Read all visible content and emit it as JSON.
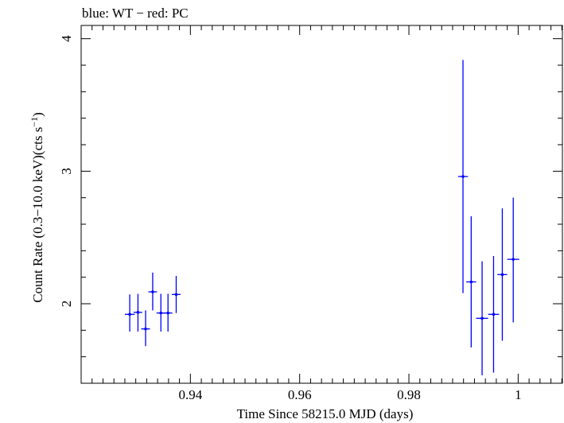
{
  "chart_data": {
    "type": "scatter",
    "title": "blue: WT − red: PC",
    "xlabel": "Time Since 58215.0 MJD (days)",
    "ylabel_main": "Count Rate (0.3−10.0 keV)(cts s",
    "ylabel_sup": "−1",
    "ylabel_close": ")",
    "xlim": [
      0.92,
      1.0081
    ],
    "ylim": [
      1.4,
      4.1
    ],
    "x_major_ticks": [
      0.94,
      0.96,
      0.98,
      1.0
    ],
    "x_tick_labels": [
      "0.94",
      "0.96",
      "0.98",
      "1"
    ],
    "y_major_ticks": [
      2,
      3,
      4
    ],
    "y_tick_labels": [
      "2",
      "3",
      "4"
    ],
    "grid": false,
    "series": [
      {
        "color": "#0000ff",
        "points": [
          {
            "x": 0.9289,
            "xerr": 0.0009,
            "y": 1.92,
            "ylo": 1.79,
            "yhi": 2.07
          },
          {
            "x": 0.9304,
            "xerr": 0.0008,
            "y": 1.935,
            "ylo": 1.79,
            "yhi": 2.075
          },
          {
            "x": 0.9318,
            "xerr": 0.0008,
            "y": 1.81,
            "ylo": 1.68,
            "yhi": 1.95
          },
          {
            "x": 0.9331,
            "xerr": 0.0008,
            "y": 2.09,
            "ylo": 1.95,
            "yhi": 2.235
          },
          {
            "x": 0.9346,
            "xerr": 0.0008,
            "y": 1.93,
            "ylo": 1.79,
            "yhi": 2.075
          },
          {
            "x": 0.9359,
            "xerr": 0.0008,
            "y": 1.93,
            "ylo": 1.79,
            "yhi": 2.075
          },
          {
            "x": 0.9374,
            "xerr": 0.0008,
            "y": 2.07,
            "ylo": 1.93,
            "yhi": 2.21
          },
          {
            "x": 0.9899,
            "xerr": 0.0009,
            "y": 2.96,
            "ylo": 2.08,
            "yhi": 3.84
          },
          {
            "x": 0.9914,
            "xerr": 0.0009,
            "y": 2.165,
            "ylo": 1.67,
            "yhi": 2.66
          },
          {
            "x": 0.9934,
            "xerr": 0.0011,
            "y": 1.89,
            "ylo": 1.46,
            "yhi": 2.32
          },
          {
            "x": 0.9955,
            "xerr": 0.001,
            "y": 1.92,
            "ylo": 1.48,
            "yhi": 2.36
          },
          {
            "x": 0.9971,
            "xerr": 0.0009,
            "y": 2.22,
            "ylo": 1.72,
            "yhi": 2.72
          },
          {
            "x": 0.9991,
            "xerr": 0.0011,
            "y": 2.335,
            "ylo": 1.86,
            "yhi": 2.8
          }
        ]
      }
    ]
  }
}
